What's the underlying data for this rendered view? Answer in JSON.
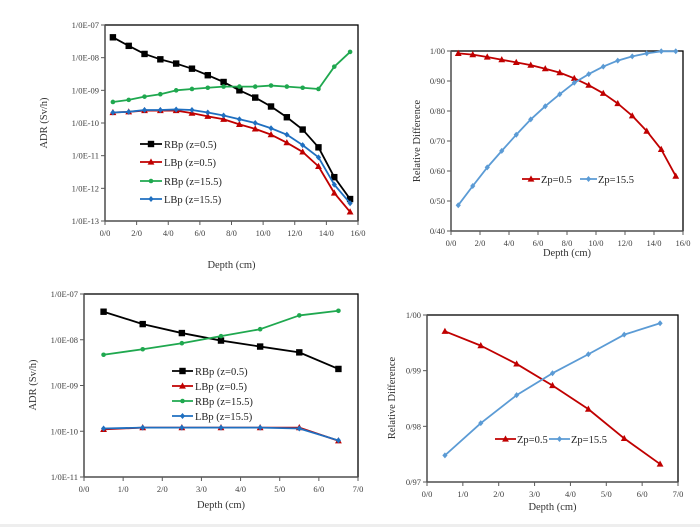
{
  "figure": {
    "panels": [
      "top-left",
      "top-right",
      "bottom-left",
      "bottom-right"
    ]
  },
  "chart_data": [
    {
      "id": "adr-16",
      "type": "line",
      "title": "",
      "xlabel": "Depth (cm)",
      "ylabel": "ADR  (Sv/h)",
      "yscale": "log",
      "xlim": [
        0,
        16
      ],
      "ylim": [
        1e-13,
        1e-07
      ],
      "xticks": [
        0,
        2,
        4,
        6,
        8,
        10,
        12,
        14,
        16
      ],
      "xtick_labels": [
        "0/0",
        "2/0",
        "4/0",
        "6/0",
        "8/0",
        "10/0",
        "12/0",
        "14/0",
        "16/0"
      ],
      "yticks": [
        1e-07,
        1e-08,
        1e-09,
        1e-10,
        1e-11,
        1e-12,
        1e-13
      ],
      "ytick_labels": [
        "1/0E-07",
        "1/0E-08",
        "1/0E-09",
        "1/0E-10",
        "1/0E-11",
        "1/0E-12",
        "1/0E-13"
      ],
      "grid": false,
      "legend_position": "lower-left",
      "x": [
        0.5,
        1.5,
        2.5,
        3.5,
        4.5,
        5.5,
        6.5,
        7.5,
        8.5,
        9.5,
        10.5,
        11.5,
        12.5,
        13.5,
        14.5,
        15.5
      ],
      "series": [
        {
          "name": "RBp (z=0.5)",
          "color": "#000000",
          "marker": "square",
          "values": [
            4.2e-08,
            2.3e-08,
            1.3e-08,
            8.9e-09,
            6.6e-09,
            4.6e-09,
            2.9e-09,
            1.8e-09,
            1e-09,
            6e-10,
            3.2e-10,
            1.5e-10,
            6.3e-11,
            1.8e-11,
            2.2e-12,
            4.7e-13
          ]
        },
        {
          "name": "LBp (z=0.5)",
          "color": "#c00000",
          "marker": "triangle",
          "values": [
            2.1e-10,
            2.2e-10,
            2.4e-10,
            2.4e-10,
            2.4e-10,
            2e-10,
            1.6e-10,
            1.3e-10,
            9.1e-11,
            6.6e-11,
            4.4e-11,
            2.5e-11,
            1.3e-11,
            4.7e-12,
            7.2e-13,
            1.9e-13
          ]
        },
        {
          "name": "RBp (z=15.5)",
          "color": "#1fa84f",
          "marker": "dot",
          "values": [
            4.4e-10,
            5.1e-10,
            6.4e-10,
            7.6e-10,
            1e-09,
            1.1e-09,
            1.2e-09,
            1.3e-09,
            1.3e-09,
            1.3e-09,
            1.4e-09,
            1.3e-09,
            1.2e-09,
            1.1e-09,
            5.3e-09,
            1.5e-08
          ]
        },
        {
          "name": "LBp (z=15.5)",
          "color": "#1f6fc0",
          "marker": "diamond",
          "values": [
            2.1e-10,
            2.2e-10,
            2.5e-10,
            2.5e-10,
            2.6e-10,
            2.5e-10,
            2.1e-10,
            1.7e-10,
            1.3e-10,
            1e-10,
            6.9e-11,
            4.4e-11,
            2.1e-11,
            8.9e-12,
            1.3e-12,
            3.5e-13
          ]
        }
      ]
    },
    {
      "id": "rd-16",
      "type": "line",
      "title": "",
      "xlabel": "Depth (cm)",
      "ylabel": "Relative Difference",
      "yscale": "linear",
      "xlim": [
        0,
        16
      ],
      "ylim": [
        0.4,
        1.0
      ],
      "xticks": [
        0,
        2,
        4,
        6,
        8,
        10,
        12,
        14,
        16
      ],
      "xtick_labels": [
        "0/0",
        "2/0",
        "4/0",
        "6/0",
        "8/0",
        "10/0",
        "12/0",
        "14/0",
        "16/0"
      ],
      "yticks": [
        0.4,
        0.5,
        0.6,
        0.7,
        0.8,
        0.9,
        1.0
      ],
      "ytick_labels": [
        "0/40",
        "0/50",
        "0/60",
        "0/70",
        "0/80",
        "0/90",
        "1/00"
      ],
      "grid": false,
      "legend_position": "center-right",
      "x": [
        0.5,
        1.5,
        2.5,
        3.5,
        4.5,
        5.5,
        6.5,
        7.5,
        8.5,
        9.5,
        10.5,
        11.5,
        12.5,
        13.5,
        14.5,
        15.5
      ],
      "series": [
        {
          "name": "Zp=0.5",
          "color": "#c00000",
          "marker": "triangle",
          "values": [
            0.992,
            0.988,
            0.98,
            0.971,
            0.962,
            0.953,
            0.941,
            0.928,
            0.909,
            0.886,
            0.859,
            0.825,
            0.784,
            0.733,
            0.672,
            0.583
          ]
        },
        {
          "name": "Zp=15.5",
          "color": "#5b9bd5",
          "marker": "diamond",
          "values": [
            0.486,
            0.55,
            0.612,
            0.667,
            0.721,
            0.772,
            0.816,
            0.856,
            0.894,
            0.923,
            0.948,
            0.968,
            0.982,
            0.992,
            0.999,
            0.999
          ]
        }
      ]
    },
    {
      "id": "adr-7",
      "type": "line",
      "title": "",
      "xlabel": "Depth (cm)",
      "ylabel": "ADR  (Sv/h)",
      "yscale": "log",
      "xlim": [
        0,
        7
      ],
      "ylim": [
        1e-11,
        1e-07
      ],
      "xticks": [
        0,
        1,
        2,
        3,
        4,
        5,
        6,
        7
      ],
      "xtick_labels": [
        "0/0",
        "1/0",
        "2/0",
        "3/0",
        "4/0",
        "5/0",
        "6/0",
        "7/0"
      ],
      "yticks": [
        1e-07,
        1e-08,
        1e-09,
        1e-10,
        1e-11
      ],
      "ytick_labels": [
        "1/0E-07",
        "1/0E-08",
        "1/0E-09",
        "1/0E-10",
        "1/0E-11"
      ],
      "grid": false,
      "legend_position": "center",
      "x": [
        0.5,
        1.5,
        2.5,
        3.5,
        4.5,
        5.5,
        6.5
      ],
      "series": [
        {
          "name": "RBp (z=0.5)",
          "color": "#000000",
          "marker": "square",
          "values": [
            4.1e-08,
            2.2e-08,
            1.4e-08,
            9.6e-09,
            7.1e-09,
            5.3e-09,
            2.3e-09
          ]
        },
        {
          "name": "LBp (z=0.5)",
          "color": "#c00000",
          "marker": "triangle",
          "values": [
            1.1e-10,
            1.2e-10,
            1.2e-10,
            1.2e-10,
            1.2e-10,
            1.2e-10,
            6.2e-11
          ]
        },
        {
          "name": "RBp (z=15.5)",
          "color": "#1fa84f",
          "marker": "dot",
          "values": [
            4.7e-09,
            6.2e-09,
            8.4e-09,
            1.2e-08,
            1.7e-08,
            3.4e-08,
            4.3e-08
          ]
        },
        {
          "name": "LBp (z=15.5)",
          "color": "#1f6fc0",
          "marker": "diamond",
          "values": [
            1.15e-10,
            1.2e-10,
            1.2e-10,
            1.2e-10,
            1.2e-10,
            1.15e-10,
            6.3e-11
          ]
        }
      ]
    },
    {
      "id": "rd-7",
      "type": "line",
      "title": "",
      "xlabel": "Depth (cm)",
      "ylabel": "Relative Difference",
      "yscale": "linear",
      "xlim": [
        0,
        7
      ],
      "ylim": [
        0.97,
        1.0
      ],
      "xticks": [
        0,
        1,
        2,
        3,
        4,
        5,
        6,
        7
      ],
      "xtick_labels": [
        "0/0",
        "1/0",
        "2/0",
        "3/0",
        "4/0",
        "5/0",
        "6/0",
        "7/0"
      ],
      "yticks": [
        0.97,
        0.98,
        0.99,
        1.0
      ],
      "ytick_labels": [
        "0/97",
        "0/98",
        "0/99",
        "1/00"
      ],
      "grid": false,
      "legend_position": "center",
      "x": [
        0.5,
        1.5,
        2.5,
        3.5,
        4.5,
        5.5,
        6.5
      ],
      "series": [
        {
          "name": "Zp=0.5",
          "color": "#c00000",
          "marker": "triangle",
          "values": [
            0.99707,
            0.9945,
            0.99121,
            0.98733,
            0.98309,
            0.97783,
            0.97322
          ]
        },
        {
          "name": "Zp=15.5",
          "color": "#5b9bd5",
          "marker": "diamond",
          "values": [
            0.97478,
            0.98057,
            0.9856,
            0.98954,
            0.99295,
            0.99647,
            0.99851
          ]
        }
      ]
    }
  ]
}
